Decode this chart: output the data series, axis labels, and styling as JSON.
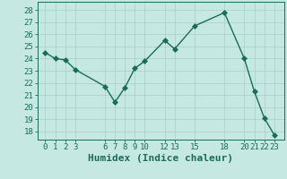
{
  "x": [
    0,
    1,
    2,
    3,
    6,
    7,
    8,
    9,
    10,
    12,
    13,
    15,
    18,
    20,
    21,
    22,
    23
  ],
  "y": [
    24.5,
    24.0,
    23.9,
    23.1,
    21.7,
    20.4,
    21.6,
    23.2,
    23.8,
    25.5,
    24.8,
    26.7,
    27.8,
    24.0,
    21.3,
    19.1,
    17.7
  ],
  "line_color": "#1a6b5a",
  "marker": "D",
  "bg_color": "#c5e8e2",
  "grid_color": "#a8d0c8",
  "tick_label_color": "#1a6b5a",
  "xlabel": "Humidex (Indice chaleur)",
  "xlabel_color": "#1a6b5a",
  "xticks": [
    0,
    1,
    2,
    3,
    6,
    7,
    8,
    9,
    10,
    12,
    13,
    15,
    18,
    20,
    21,
    22,
    23
  ],
  "yticks": [
    18,
    19,
    20,
    21,
    22,
    23,
    24,
    25,
    26,
    27,
    28
  ],
  "ylim": [
    17.3,
    28.7
  ],
  "xlim": [
    -0.8,
    24.0
  ],
  "fontsize_ticks": 6.5,
  "fontsize_xlabel": 8.0,
  "marker_size": 3
}
